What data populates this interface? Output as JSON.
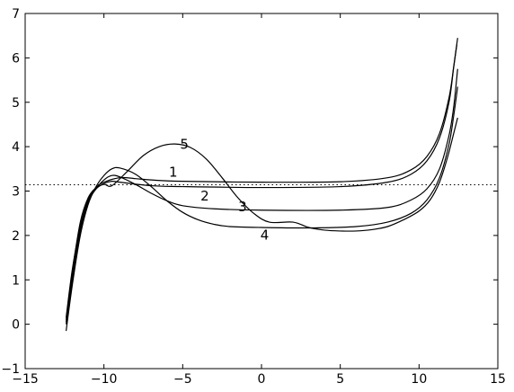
{
  "chart_data": {
    "type": "line",
    "title": "",
    "xlabel": "",
    "ylabel": "",
    "xlim": [
      -15,
      15
    ],
    "ylim": [
      -1,
      7
    ],
    "grid": false,
    "legend": "none",
    "xticks": [
      "−15",
      "−10",
      "−5",
      "0",
      "5",
      "10",
      "15"
    ],
    "xtick_values": [
      -15,
      -10,
      -5,
      0,
      5,
      10,
      15
    ],
    "yticks": [
      "−1",
      "0",
      "1",
      "2",
      "3",
      "4",
      "5",
      "6",
      "7"
    ],
    "ytick_values": [
      -1,
      0,
      1,
      2,
      3,
      4,
      5,
      6,
      7
    ],
    "reference_line": {
      "y": 3.1416,
      "style": "dotted",
      "color": "#000000"
    },
    "line_color": "#000000",
    "series": [
      {
        "label": "1",
        "label_at": [
          -5.6,
          3.42
        ],
        "points": [
          [
            -12.4,
            0.1
          ],
          [
            -12.0,
            1.2
          ],
          [
            -11.5,
            2.3
          ],
          [
            -11.0,
            2.85
          ],
          [
            -10.5,
            3.08
          ],
          [
            -10.0,
            3.2
          ],
          [
            -9.0,
            3.3
          ],
          [
            -8.0,
            3.28
          ],
          [
            -7.0,
            3.25
          ],
          [
            -5.0,
            3.22
          ],
          [
            0.0,
            3.2
          ],
          [
            5.0,
            3.21
          ],
          [
            8.0,
            3.3
          ],
          [
            9.5,
            3.48
          ],
          [
            10.5,
            3.78
          ],
          [
            11.3,
            4.3
          ],
          [
            11.9,
            5.1
          ],
          [
            12.2,
            5.8
          ],
          [
            12.4,
            6.3
          ]
        ]
      },
      {
        "label": "2",
        "label_at": [
          -3.6,
          2.88
        ],
        "points": [
          [
            -12.4,
            0.05
          ],
          [
            -12.0,
            1.1
          ],
          [
            -11.5,
            2.2
          ],
          [
            -11.0,
            2.8
          ],
          [
            -10.5,
            3.05
          ],
          [
            -10.0,
            3.17
          ],
          [
            -9.5,
            3.22
          ],
          [
            -9.0,
            3.2
          ],
          [
            -7.0,
            3.12
          ],
          [
            -5.0,
            3.1
          ],
          [
            0.0,
            3.08
          ],
          [
            5.0,
            3.1
          ],
          [
            8.0,
            3.2
          ],
          [
            9.5,
            3.38
          ],
          [
            10.5,
            3.68
          ],
          [
            11.3,
            4.2
          ],
          [
            11.9,
            5.0
          ],
          [
            12.2,
            5.8
          ],
          [
            12.45,
            6.45
          ]
        ]
      },
      {
        "label": "3",
        "label_at": [
          -1.2,
          2.64
        ],
        "points": [
          [
            -12.4,
            0.0
          ],
          [
            -12.0,
            1.0
          ],
          [
            -11.5,
            2.1
          ],
          [
            -11.0,
            2.75
          ],
          [
            -10.5,
            3.05
          ],
          [
            -10.0,
            3.25
          ],
          [
            -9.5,
            3.35
          ],
          [
            -9.0,
            3.32
          ],
          [
            -8.0,
            3.15
          ],
          [
            -7.0,
            2.95
          ],
          [
            -6.0,
            2.78
          ],
          [
            -5.0,
            2.67
          ],
          [
            -3.0,
            2.6
          ],
          [
            0.0,
            2.57
          ],
          [
            5.0,
            2.57
          ],
          [
            8.0,
            2.63
          ],
          [
            9.5,
            2.8
          ],
          [
            10.5,
            3.05
          ],
          [
            11.3,
            3.5
          ],
          [
            11.9,
            4.25
          ],
          [
            12.2,
            4.9
          ],
          [
            12.45,
            5.75
          ]
        ]
      },
      {
        "label": "4",
        "label_at": [
          0.2,
          2.0
        ],
        "points": [
          [
            -12.4,
            -0.15
          ],
          [
            -12.0,
            0.9
          ],
          [
            -11.5,
            2.0
          ],
          [
            -11.0,
            2.7
          ],
          [
            -10.5,
            3.1
          ],
          [
            -10.0,
            3.35
          ],
          [
            -9.5,
            3.5
          ],
          [
            -9.0,
            3.52
          ],
          [
            -8.0,
            3.38
          ],
          [
            -7.0,
            3.1
          ],
          [
            -6.0,
            2.78
          ],
          [
            -5.0,
            2.52
          ],
          [
            -4.0,
            2.35
          ],
          [
            -3.0,
            2.25
          ],
          [
            -2.0,
            2.2
          ],
          [
            0.0,
            2.18
          ],
          [
            3.0,
            2.17
          ],
          [
            6.0,
            2.2
          ],
          [
            8.0,
            2.3
          ],
          [
            9.5,
            2.5
          ],
          [
            10.5,
            2.8
          ],
          [
            11.3,
            3.3
          ],
          [
            11.9,
            4.05
          ],
          [
            12.2,
            4.7
          ],
          [
            12.45,
            5.35
          ]
        ]
      },
      {
        "label": "5",
        "label_at": [
          -4.9,
          4.04
        ],
        "points": [
          [
            -12.4,
            0.15
          ],
          [
            -12.0,
            1.25
          ],
          [
            -11.5,
            2.2
          ],
          [
            -11.0,
            2.75
          ],
          [
            -10.5,
            3.05
          ],
          [
            -10.0,
            3.15
          ],
          [
            -9.5,
            3.12
          ],
          [
            -9.0,
            3.05
          ],
          [
            -8.5,
            2.95
          ],
          [
            -8.0,
            2.85
          ],
          [
            -7.5,
            2.75
          ],
          [
            -7.0,
            2.68
          ],
          [
            -6.0,
            2.6
          ],
          [
            -5.0,
            2.57
          ],
          [
            -3.0,
            2.55
          ],
          [
            0.0,
            2.5
          ],
          [
            1.0,
            2.42
          ],
          [
            2.0,
            2.3
          ],
          [
            3.0,
            2.18
          ],
          [
            4.0,
            2.12
          ],
          [
            5.0,
            2.1
          ],
          [
            6.0,
            2.1
          ],
          [
            7.0,
            2.13
          ],
          [
            8.0,
            2.2
          ],
          [
            9.0,
            2.35
          ],
          [
            10.0,
            2.55
          ],
          [
            10.7,
            2.8
          ],
          [
            11.3,
            3.2
          ],
          [
            11.8,
            3.75
          ],
          [
            12.2,
            4.3
          ],
          [
            12.45,
            4.65
          ]
        ],
        "note_points_hump": [
          [
            -9.5,
            3.12
          ],
          [
            -8.5,
            3.45
          ],
          [
            -7.5,
            3.8
          ],
          [
            -6.5,
            4.0
          ],
          [
            -5.5,
            4.06
          ],
          [
            -4.5,
            3.98
          ],
          [
            -3.5,
            3.72
          ],
          [
            -2.5,
            3.3
          ],
          [
            -1.5,
            2.85
          ],
          [
            -0.5,
            2.5
          ],
          [
            0.5,
            2.3
          ],
          [
            1.5,
            2.22
          ]
        ]
      }
    ]
  }
}
